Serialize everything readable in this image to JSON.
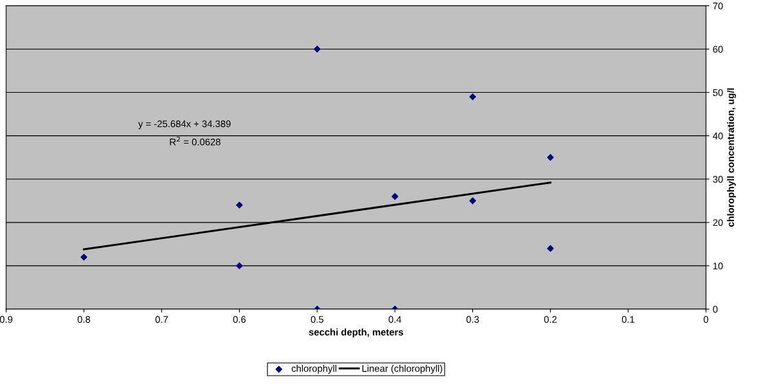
{
  "chart_data": {
    "type": "scatter",
    "xlabel": "secchi depth, meters",
    "ylabel": "chlorophyll concentration, ug/l",
    "xlim": [
      0.9,
      0
    ],
    "xticks": [
      0.9,
      0.8,
      0.7,
      0.6,
      0.5,
      0.4,
      0.3,
      0.2,
      0.1,
      0
    ],
    "ylim": [
      0,
      70
    ],
    "yticks": [
      0,
      10,
      20,
      30,
      40,
      50,
      60,
      70
    ],
    "grid": "y",
    "legend": "bottom",
    "series": [
      {
        "name": "chlorophyll",
        "color": "#000080",
        "marker": "diamond",
        "x": [
          0.8,
          0.6,
          0.6,
          0.5,
          0.5,
          0.4,
          0.4,
          0.3,
          0.3,
          0.2,
          0.2
        ],
        "values": [
          12,
          24,
          10,
          60,
          0,
          26,
          0,
          49,
          25,
          35,
          14
        ]
      },
      {
        "name": "Linear (chlorophyll)",
        "type": "line",
        "color": "#000000",
        "marker": "none",
        "line_style": "solid",
        "x": [
          0.8,
          0.2
        ],
        "values": [
          13.8,
          29.2
        ]
      }
    ],
    "annotations": [
      "y = -25.684x + 34.389",
      "R$^{2}$ = 0.0628"
    ]
  }
}
